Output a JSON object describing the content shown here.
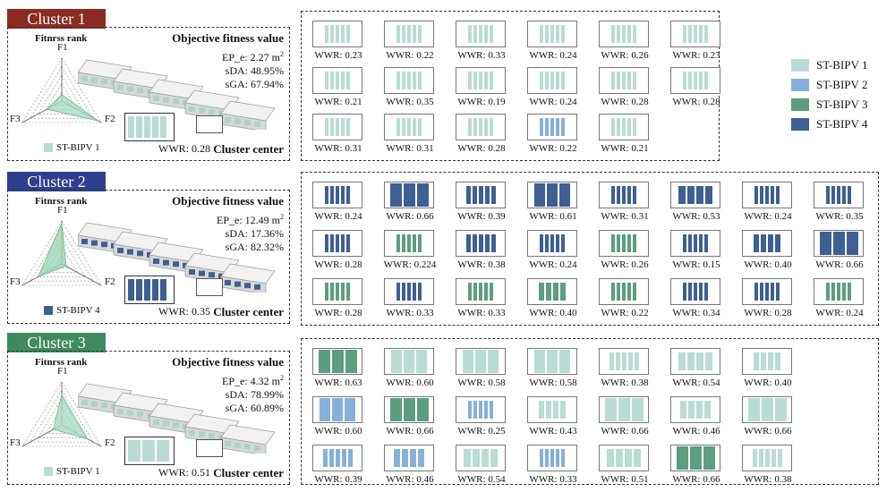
{
  "legend": [
    {
      "label": "ST-BIPV 1",
      "color": "#b9dcd5"
    },
    {
      "label": "ST-BIPV 2",
      "color": "#86b0d9"
    },
    {
      "label": "ST-BIPV 3",
      "color": "#5c9e7f"
    },
    {
      "label": "ST-BIPV 4",
      "color": "#3f5f92"
    }
  ],
  "common": {
    "fitness_title": "Objective fitness value",
    "rank_label": "Fitnrss rank",
    "axes": [
      "F1",
      "F2",
      "F3"
    ],
    "cluster_center": "Cluster center"
  },
  "clusters": [
    {
      "title": "Cluster 1",
      "title_color": "#8b2b22",
      "ep": "EP_e: 2.27 m",
      "sda": "sDA: 48.95%",
      "sga": "sGA: 67.94%",
      "type_label": "ST-BIPV 1",
      "type_color": "#b9dcd5",
      "center_wwr": "WWR: 0.28",
      "cells": [
        [
          "WWR: 0.23",
          "WWR: 0.22",
          "WWR: 0.33",
          "WWR: 0.24",
          "WWR: 0.26",
          "WWR: 0.23"
        ],
        [
          "WWR: 0.21",
          "WWR: 0.35",
          "WWR: 0.19",
          "WWR: 0.24",
          "WWR: 0.28",
          "WWR: 0.28"
        ],
        [
          "WWR: 0.31",
          "WWR: 0.31",
          "WWR: 0.28",
          "WWR: 0.22",
          "WWR: 0.21"
        ]
      ],
      "cell_types": [
        [
          1,
          1,
          1,
          1,
          1,
          1
        ],
        [
          1,
          1,
          1,
          1,
          1,
          1
        ],
        [
          1,
          1,
          1,
          2,
          1
        ]
      ]
    },
    {
      "title": "Cluster 2",
      "title_color": "#2e3f8c",
      "ep": "EP_e: 12.49 m",
      "sda": "sDA: 17.36%",
      "sga": "sGA: 82.32%",
      "type_label": "ST-BIPV 4",
      "type_color": "#3f5f92",
      "center_wwr": "WWR: 0.35",
      "cells": [
        [
          "WWR: 0.24",
          "WWR: 0.66",
          "WWR: 0.39",
          "WWR: 0.61",
          "WWR: 0.31",
          "WWR: 0.53",
          "WWR: 0.24",
          "WWR: 0.35"
        ],
        [
          "WWR: 0.28",
          "WWR: 0.224",
          "WWR: 0.38",
          "WWR: 0.24",
          "WWR: 0.26",
          "WWR: 0.15",
          "WWR: 0.40",
          "WWR: 0.66"
        ],
        [
          "WWR: 0.28",
          "WWR: 0.33",
          "WWR: 0.33",
          "WWR: 0.40",
          "WWR: 0.22",
          "WWR: 0.34",
          "WWR: 0.28",
          "WWR: 0.24"
        ]
      ],
      "cell_types": [
        [
          4,
          4,
          4,
          4,
          4,
          4,
          4,
          4
        ],
        [
          4,
          3,
          4,
          4,
          3,
          4,
          4,
          4
        ],
        [
          3,
          4,
          3,
          3,
          3,
          4,
          4,
          3
        ]
      ]
    },
    {
      "title": "Cluster 3",
      "title_color": "#3e8a5e",
      "ep": "EP_e: 4.32 m",
      "sda": "sDA: 78.99%",
      "sga": "sGA: 60.89%",
      "type_label": "ST-BIPV 1",
      "type_color": "#b9dcd5",
      "center_wwr": "WWR: 0.51",
      "cells": [
        [
          "WWR: 0.63",
          "WWR: 0.60",
          "WWR: 0.58",
          "WWR: 0.58",
          "WWR: 0.38",
          "WWR: 0.54",
          "WWR: 0.40"
        ],
        [
          "WWR: 0.60",
          "WWR: 0.66",
          "WWR: 0.25",
          "WWR: 0.43",
          "WWR: 0.66",
          "WWR: 0.46",
          "WWR: 0.66"
        ],
        [
          "WWR: 0.39",
          "WWR: 0.46",
          "WWR: 0.54",
          "WWR: 0.33",
          "WWR: 0.51",
          "WWR: 0.66",
          "WWR: 0.38"
        ]
      ],
      "cell_types": [
        [
          3,
          1,
          1,
          1,
          1,
          1,
          1
        ],
        [
          2,
          3,
          2,
          1,
          1,
          1,
          1
        ],
        [
          2,
          2,
          1,
          2,
          1,
          3,
          1
        ]
      ]
    }
  ]
}
